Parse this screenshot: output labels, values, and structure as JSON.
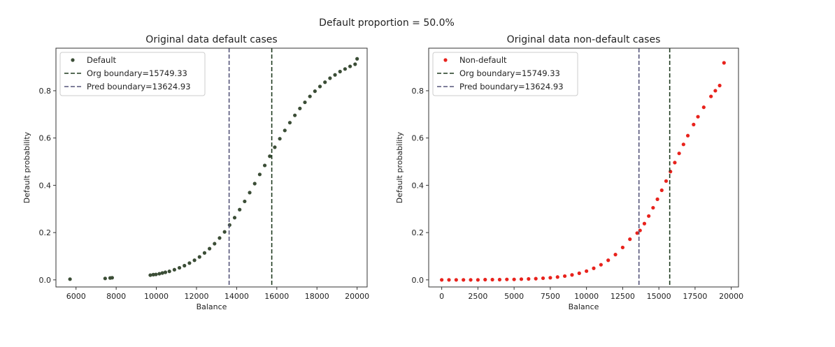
{
  "figure": {
    "suptitle": "Default proportion = 50.0%"
  },
  "chart_data": [
    {
      "type": "scatter",
      "title": "Original data default cases",
      "xlabel": "Balance",
      "ylabel": "Default probability",
      "xlim": [
        5000,
        20500
      ],
      "ylim": [
        -0.03,
        0.98
      ],
      "xticks": [
        6000,
        8000,
        10000,
        12000,
        14000,
        16000,
        18000,
        20000
      ],
      "xtick_labels": [
        "6000",
        "8000",
        "10000",
        "12000",
        "14000",
        "16000",
        "18000",
        "20000"
      ],
      "yticks": [
        0.0,
        0.2,
        0.4,
        0.6,
        0.8
      ],
      "ytick_labels": [
        "0.0",
        "0.2",
        "0.4",
        "0.6",
        "0.8"
      ],
      "grid": false,
      "legend_position": "top-left",
      "series": [
        {
          "name": "Default",
          "color": "#3b4d36",
          "x": [
            5700,
            7450,
            7700,
            7800,
            9700,
            9850,
            9980,
            10150,
            10300,
            10450,
            10650,
            10900,
            11150,
            11400,
            11650,
            11900,
            12150,
            12400,
            12650,
            12900,
            13150,
            13400,
            13650,
            13900,
            14150,
            14400,
            14650,
            14900,
            15150,
            15400,
            15650,
            15900,
            16150,
            16400,
            16650,
            16900,
            17150,
            17400,
            17650,
            17900,
            18150,
            18400,
            18650,
            18900,
            19150,
            19400,
            19650,
            19900,
            20000
          ],
          "y": [
            0.003,
            0.006,
            0.008,
            0.009,
            0.02,
            0.022,
            0.023,
            0.026,
            0.029,
            0.032,
            0.036,
            0.043,
            0.051,
            0.06,
            0.071,
            0.083,
            0.097,
            0.114,
            0.132,
            0.153,
            0.177,
            0.203,
            0.232,
            0.263,
            0.297,
            0.332,
            0.369,
            0.407,
            0.446,
            0.484,
            0.523,
            0.561,
            0.597,
            0.632,
            0.665,
            0.696,
            0.725,
            0.751,
            0.776,
            0.798,
            0.818,
            0.836,
            0.853,
            0.867,
            0.881,
            0.892,
            0.903,
            0.912,
            0.935
          ]
        }
      ],
      "vlines": [
        {
          "name": "Org boundary=15749.33",
          "x": 15749.33,
          "color": "#1f3a1f"
        },
        {
          "name": "Pred boundary=13624.93",
          "x": 13624.93,
          "color": "#55557a"
        }
      ]
    },
    {
      "type": "scatter",
      "title": "Original data non-default cases",
      "xlabel": "Balance",
      "ylabel": "Default probability",
      "xlim": [
        -900,
        20500
      ],
      "ylim": [
        -0.03,
        0.98
      ],
      "xticks": [
        0,
        2500,
        5000,
        7500,
        10000,
        12500,
        15000,
        17500,
        20000
      ],
      "xtick_labels": [
        "0",
        "2500",
        "5000",
        "7500",
        "10000",
        "12500",
        "15000",
        "17500",
        "20000"
      ],
      "yticks": [
        0.0,
        0.2,
        0.4,
        0.6,
        0.8
      ],
      "ytick_labels": [
        "0.0",
        "0.2",
        "0.4",
        "0.6",
        "0.8"
      ],
      "grid": false,
      "legend_position": "top-left",
      "series": [
        {
          "name": "Non-default",
          "color": "#e8221c",
          "x": [
            0,
            500,
            1000,
            1500,
            2000,
            2500,
            3000,
            3500,
            4000,
            4500,
            5000,
            5500,
            6000,
            6500,
            7000,
            7500,
            8000,
            8500,
            9000,
            9500,
            10000,
            10500,
            11000,
            11500,
            12000,
            12500,
            13000,
            13500,
            13700,
            14000,
            14300,
            14600,
            14900,
            15200,
            15500,
            15800,
            16100,
            16400,
            16700,
            17000,
            17400,
            17700,
            18100,
            18600,
            18900,
            19200,
            19500
          ],
          "y": [
            0.0,
            0.0,
            0.0,
            0.0,
            0.0,
            0.0,
            0.001,
            0.001,
            0.001,
            0.002,
            0.002,
            0.003,
            0.004,
            0.005,
            0.007,
            0.009,
            0.012,
            0.016,
            0.021,
            0.028,
            0.037,
            0.049,
            0.064,
            0.083,
            0.107,
            0.137,
            0.172,
            0.198,
            0.209,
            0.238,
            0.27,
            0.305,
            0.341,
            0.379,
            0.418,
            0.458,
            0.496,
            0.535,
            0.573,
            0.61,
            0.657,
            0.69,
            0.73,
            0.776,
            0.8,
            0.822,
            0.918
          ]
        }
      ],
      "vlines": [
        {
          "name": "Org boundary=15749.33",
          "x": 15749.33,
          "color": "#1f3a1f"
        },
        {
          "name": "Pred boundary=13624.93",
          "x": 13624.93,
          "color": "#55557a"
        }
      ]
    }
  ]
}
